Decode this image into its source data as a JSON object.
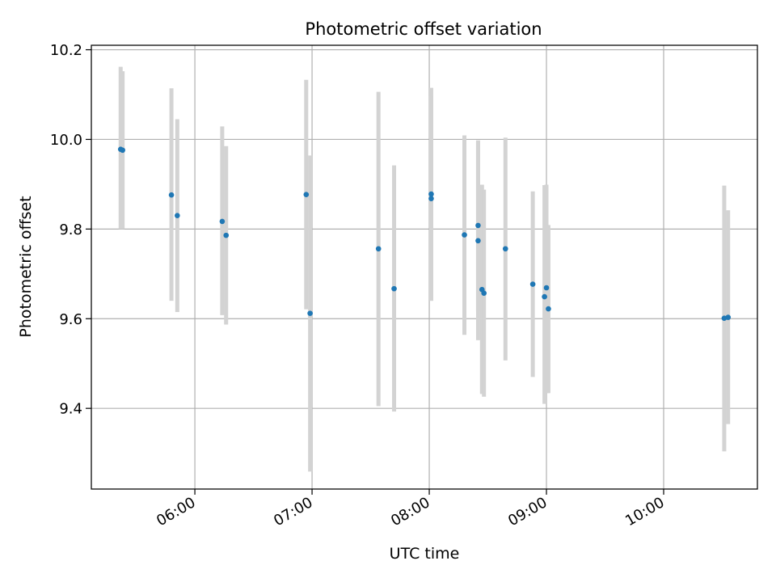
{
  "chart_data": {
    "type": "scatter",
    "title": "Photometric offset variation",
    "xlabel": "UTC time",
    "ylabel": "Photometric offset",
    "x_tick_labels": [
      "06:00",
      "07:00",
      "08:00",
      "09:00",
      "10:00"
    ],
    "x_tick_values": [
      "06:00",
      "07:00",
      "08:00",
      "09:00",
      "10:00"
    ],
    "y_tick_labels": [
      "9.4",
      "9.6",
      "9.8",
      "10.0",
      "10.2"
    ],
    "y_tick_values": [
      9.4,
      9.6,
      9.8,
      10.0,
      10.2
    ],
    "xlim": [
      "05:07",
      "10:48"
    ],
    "ylim": [
      9.22,
      10.21
    ],
    "grid": true,
    "point_color": "#1f77b4",
    "errorbar_color": "#d3d3d3",
    "points": [
      {
        "x": "05:22",
        "y": 9.978,
        "ylow": 9.8,
        "yhigh": 10.162
      },
      {
        "x": "05:23",
        "y": 9.976,
        "ylow": 9.8,
        "yhigh": 10.152
      },
      {
        "x": "05:48",
        "y": 9.876,
        "ylow": 9.64,
        "yhigh": 10.114
      },
      {
        "x": "05:51",
        "y": 9.83,
        "ylow": 9.615,
        "yhigh": 10.045
      },
      {
        "x": "06:14",
        "y": 9.817,
        "ylow": 9.608,
        "yhigh": 10.029
      },
      {
        "x": "06:16",
        "y": 9.786,
        "ylow": 9.587,
        "yhigh": 9.985
      },
      {
        "x": "06:57",
        "y": 9.877,
        "ylow": 9.621,
        "yhigh": 10.133
      },
      {
        "x": "06:59",
        "y": 9.612,
        "ylow": 9.259,
        "yhigh": 9.964
      },
      {
        "x": "07:34",
        "y": 9.756,
        "ylow": 9.405,
        "yhigh": 10.106
      },
      {
        "x": "07:42",
        "y": 9.667,
        "ylow": 9.393,
        "yhigh": 9.942
      },
      {
        "x": "08:01",
        "y": 9.878,
        "ylow": 9.64,
        "yhigh": 10.115
      },
      {
        "x": "08:01",
        "y": 9.868,
        "ylow": 9.64,
        "yhigh": 10.097
      },
      {
        "x": "08:18",
        "y": 9.787,
        "ylow": 9.564,
        "yhigh": 10.009
      },
      {
        "x": "08:25",
        "y": 9.808,
        "ylow": 9.616,
        "yhigh": 9.998
      },
      {
        "x": "08:25",
        "y": 9.774,
        "ylow": 9.552,
        "yhigh": 9.994
      },
      {
        "x": "08:27",
        "y": 9.665,
        "ylow": 9.432,
        "yhigh": 9.899
      },
      {
        "x": "08:28",
        "y": 9.657,
        "ylow": 9.426,
        "yhigh": 9.888
      },
      {
        "x": "08:39",
        "y": 9.756,
        "ylow": 9.507,
        "yhigh": 10.004
      },
      {
        "x": "08:53",
        "y": 9.677,
        "ylow": 9.47,
        "yhigh": 9.884
      },
      {
        "x": "08:59",
        "y": 9.649,
        "ylow": 9.41,
        "yhigh": 9.898
      },
      {
        "x": "09:00",
        "y": 9.669,
        "ylow": 9.434,
        "yhigh": 9.899
      },
      {
        "x": "09:01",
        "y": 9.622,
        "ylow": 9.434,
        "yhigh": 9.809
      },
      {
        "x": "10:31",
        "y": 9.601,
        "ylow": 9.304,
        "yhigh": 9.897
      },
      {
        "x": "10:33",
        "y": 9.603,
        "ylow": 9.365,
        "yhigh": 9.842
      }
    ]
  }
}
